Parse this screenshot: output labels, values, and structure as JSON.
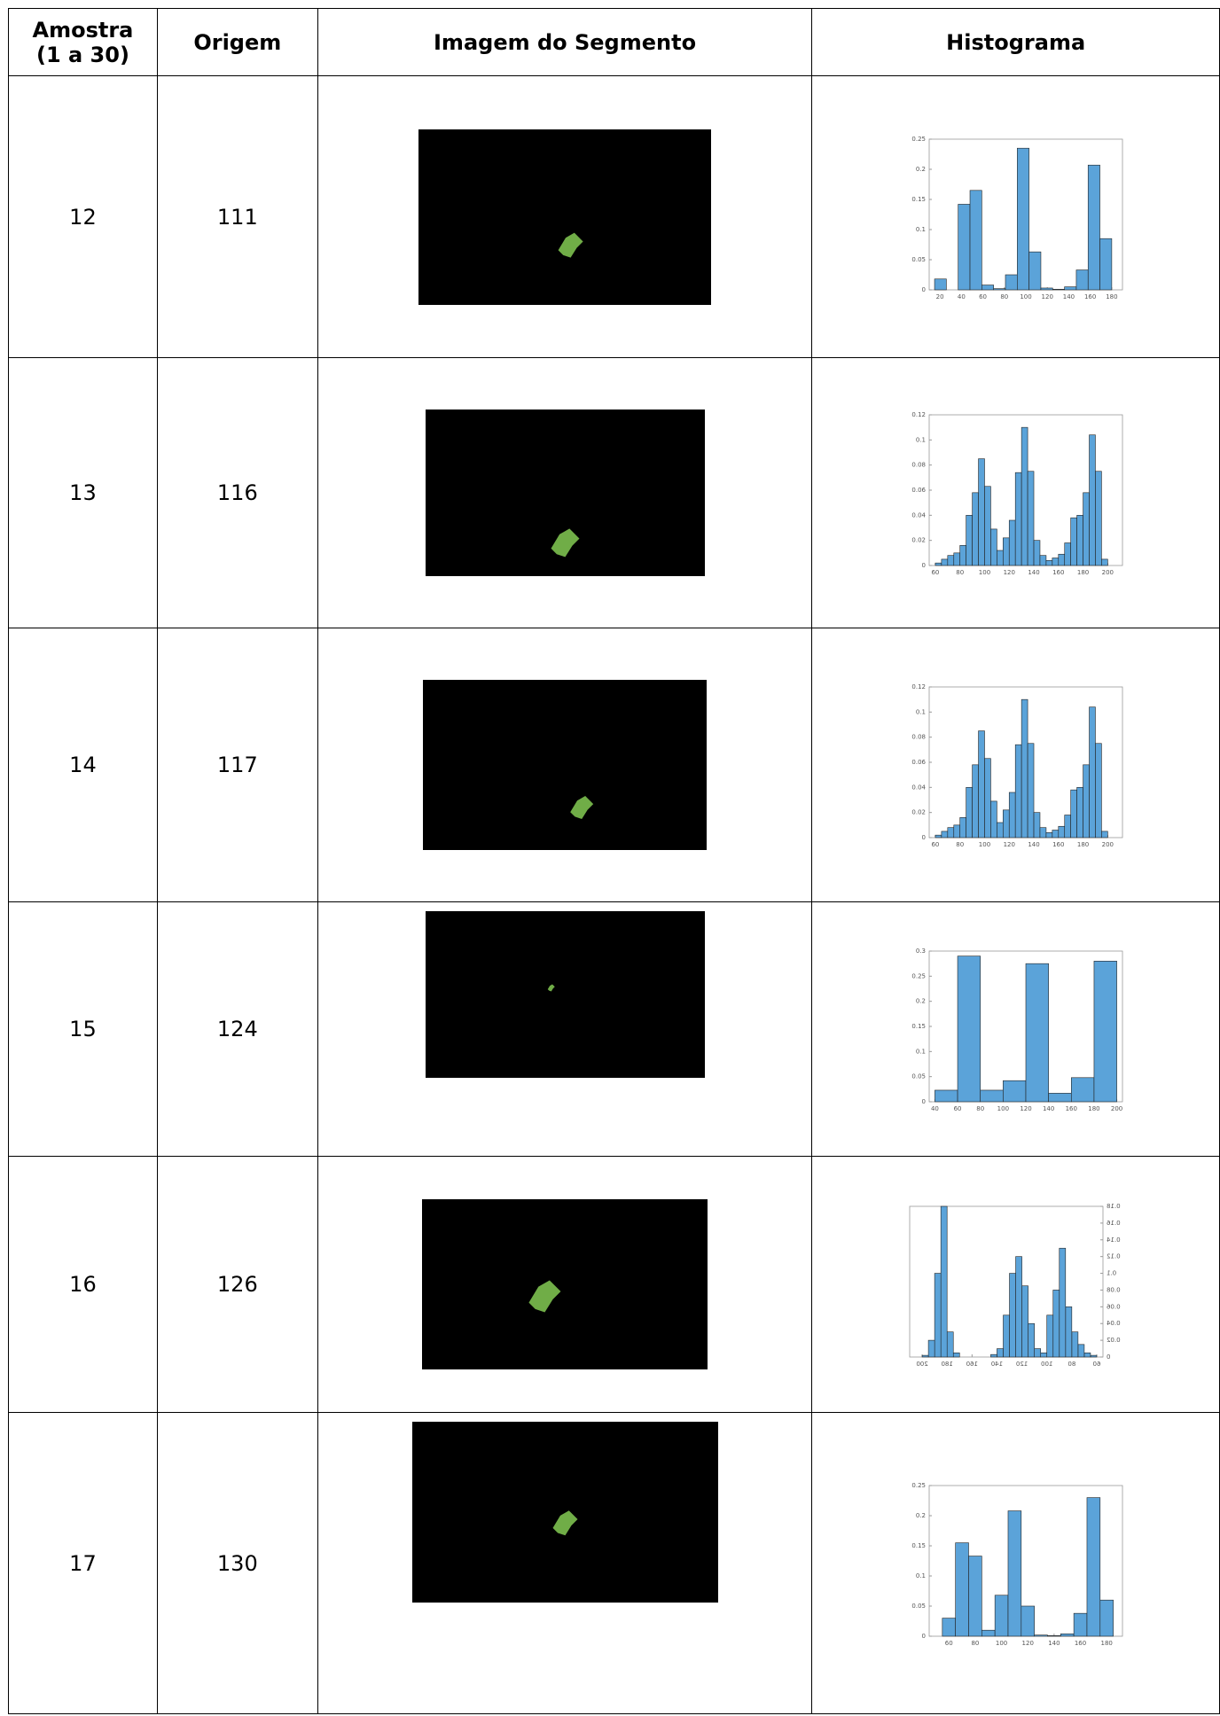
{
  "table": {
    "header": [
      "Amostra\n(1 a 30)",
      "Origem",
      "Imagem do Segmento",
      "Histograma"
    ],
    "rows": [
      {
        "amostra": "12",
        "origem": "111",
        "histogram": {
          "type": "histogram",
          "color": "#5ba3d9",
          "bins": [
            15,
            26,
            37,
            48,
            59,
            70,
            81,
            92,
            103,
            114,
            125,
            136,
            147,
            158,
            169,
            180
          ],
          "values": [
            0.018,
            0,
            0.142,
            0.165,
            0.008,
            0.002,
            0.025,
            0.235,
            0.063,
            0.003,
            0.001,
            0.005,
            0.033,
            0.207,
            0.085
          ],
          "xlim": [
            10,
            190
          ],
          "ylim": [
            0,
            0.25
          ],
          "xticks": [
            20,
            40,
            60,
            80,
            100,
            120,
            140,
            160,
            180
          ],
          "yticks": [
            0,
            0.05,
            0.1,
            0.15,
            0.2,
            0.25
          ]
        }
      },
      {
        "amostra": "13",
        "origem": "116",
        "histogram": {
          "type": "histogram",
          "color": "#5ba3d9",
          "bins": [
            60,
            65,
            70,
            75,
            80,
            85,
            90,
            95,
            100,
            105,
            110,
            115,
            120,
            125,
            130,
            135,
            140,
            145,
            150,
            155,
            160,
            165,
            170,
            175,
            180,
            185,
            190,
            195,
            200,
            205
          ],
          "values": [
            0.002,
            0.005,
            0.008,
            0.01,
            0.016,
            0.04,
            0.058,
            0.085,
            0.063,
            0.029,
            0.012,
            0.022,
            0.036,
            0.074,
            0.11,
            0.075,
            0.02,
            0.008,
            0.004,
            0.006,
            0.009,
            0.018,
            0.038,
            0.04,
            0.058,
            0.104,
            0.075,
            0.005,
            0
          ],
          "xlim": [
            55,
            212
          ],
          "ylim": [
            0,
            0.12
          ],
          "xticks": [
            60,
            80,
            100,
            120,
            140,
            160,
            180,
            200
          ],
          "yticks": [
            0,
            0.02,
            0.04,
            0.06,
            0.08,
            0.1,
            0.12
          ]
        }
      },
      {
        "amostra": "14",
        "origem": "117",
        "histogram": {
          "type": "histogram",
          "color": "#5ba3d9",
          "bins": [
            60,
            65,
            70,
            75,
            80,
            85,
            90,
            95,
            100,
            105,
            110,
            115,
            120,
            125,
            130,
            135,
            140,
            145,
            150,
            155,
            160,
            165,
            170,
            175,
            180,
            185,
            190,
            195,
            200,
            205
          ],
          "values": [
            0.002,
            0.005,
            0.008,
            0.01,
            0.016,
            0.04,
            0.058,
            0.085,
            0.063,
            0.029,
            0.012,
            0.022,
            0.036,
            0.074,
            0.11,
            0.075,
            0.02,
            0.008,
            0.004,
            0.006,
            0.009,
            0.018,
            0.038,
            0.04,
            0.058,
            0.104,
            0.075,
            0.005,
            0
          ],
          "xlim": [
            55,
            212
          ],
          "ylim": [
            0,
            0.12
          ],
          "xticks": [
            60,
            80,
            100,
            120,
            140,
            160,
            180,
            200
          ],
          "yticks": [
            0,
            0.02,
            0.04,
            0.06,
            0.08,
            0.1,
            0.12
          ]
        }
      },
      {
        "amostra": "15",
        "origem": "124",
        "histogram": {
          "type": "histogram",
          "color": "#5ba3d9",
          "bins": [
            40,
            60,
            80,
            100,
            120,
            140,
            160,
            180,
            200
          ],
          "values": [
            0.023,
            0.29,
            0.023,
            0.042,
            0.275,
            0.017,
            0.048,
            0.28
          ],
          "xlim": [
            35,
            205
          ],
          "ylim": [
            0,
            0.3
          ],
          "xticks": [
            40,
            60,
            80,
            100,
            120,
            140,
            160,
            180,
            200
          ],
          "yticks": [
            0,
            0.05,
            0.1,
            0.15,
            0.2,
            0.25,
            0.3
          ]
        }
      },
      {
        "amostra": "16",
        "origem": "126",
        "histogram": {
          "type": "histogram",
          "color": "#5ba3d9",
          "mirrored": true,
          "bins": [
            60,
            65,
            70,
            75,
            80,
            85,
            90,
            95,
            100,
            105,
            110,
            115,
            120,
            125,
            130,
            135,
            140,
            145,
            150,
            155,
            160,
            165,
            170,
            175,
            180,
            185,
            190,
            195,
            200,
            205
          ],
          "values": [
            0.002,
            0.005,
            0.015,
            0.03,
            0.06,
            0.13,
            0.08,
            0.05,
            0.005,
            0.01,
            0.04,
            0.085,
            0.12,
            0.1,
            0.05,
            0.01,
            0.003,
            0,
            0,
            0,
            0,
            0,
            0.005,
            0.03,
            0.18,
            0.1,
            0.02,
            0.002,
            0
          ],
          "xlim": [
            55,
            210
          ],
          "ylim": [
            0,
            0.18
          ],
          "xticks": [
            60,
            80,
            100,
            120,
            140,
            160,
            180,
            200
          ],
          "yticks": [
            0,
            0.02,
            0.04,
            0.06,
            0.08,
            0.1,
            0.12,
            0.14,
            0.16,
            0.18
          ]
        }
      },
      {
        "amostra": "17",
        "origem": "130",
        "histogram": {
          "type": "histogram",
          "color": "#5ba3d9",
          "bins": [
            55,
            65,
            75,
            85,
            95,
            105,
            115,
            125,
            135,
            145,
            155,
            165,
            175,
            185
          ],
          "values": [
            0.03,
            0.155,
            0.133,
            0.01,
            0.068,
            0.208,
            0.05,
            0.002,
            0.001,
            0.004,
            0.038,
            0.23,
            0.06
          ],
          "xlim": [
            45,
            192
          ],
          "ylim": [
            0,
            0.25
          ],
          "xticks": [
            60,
            80,
            100,
            120,
            140,
            160,
            180
          ],
          "yticks": [
            0,
            0.05,
            0.1,
            0.15,
            0.2,
            0.25
          ]
        }
      }
    ]
  }
}
